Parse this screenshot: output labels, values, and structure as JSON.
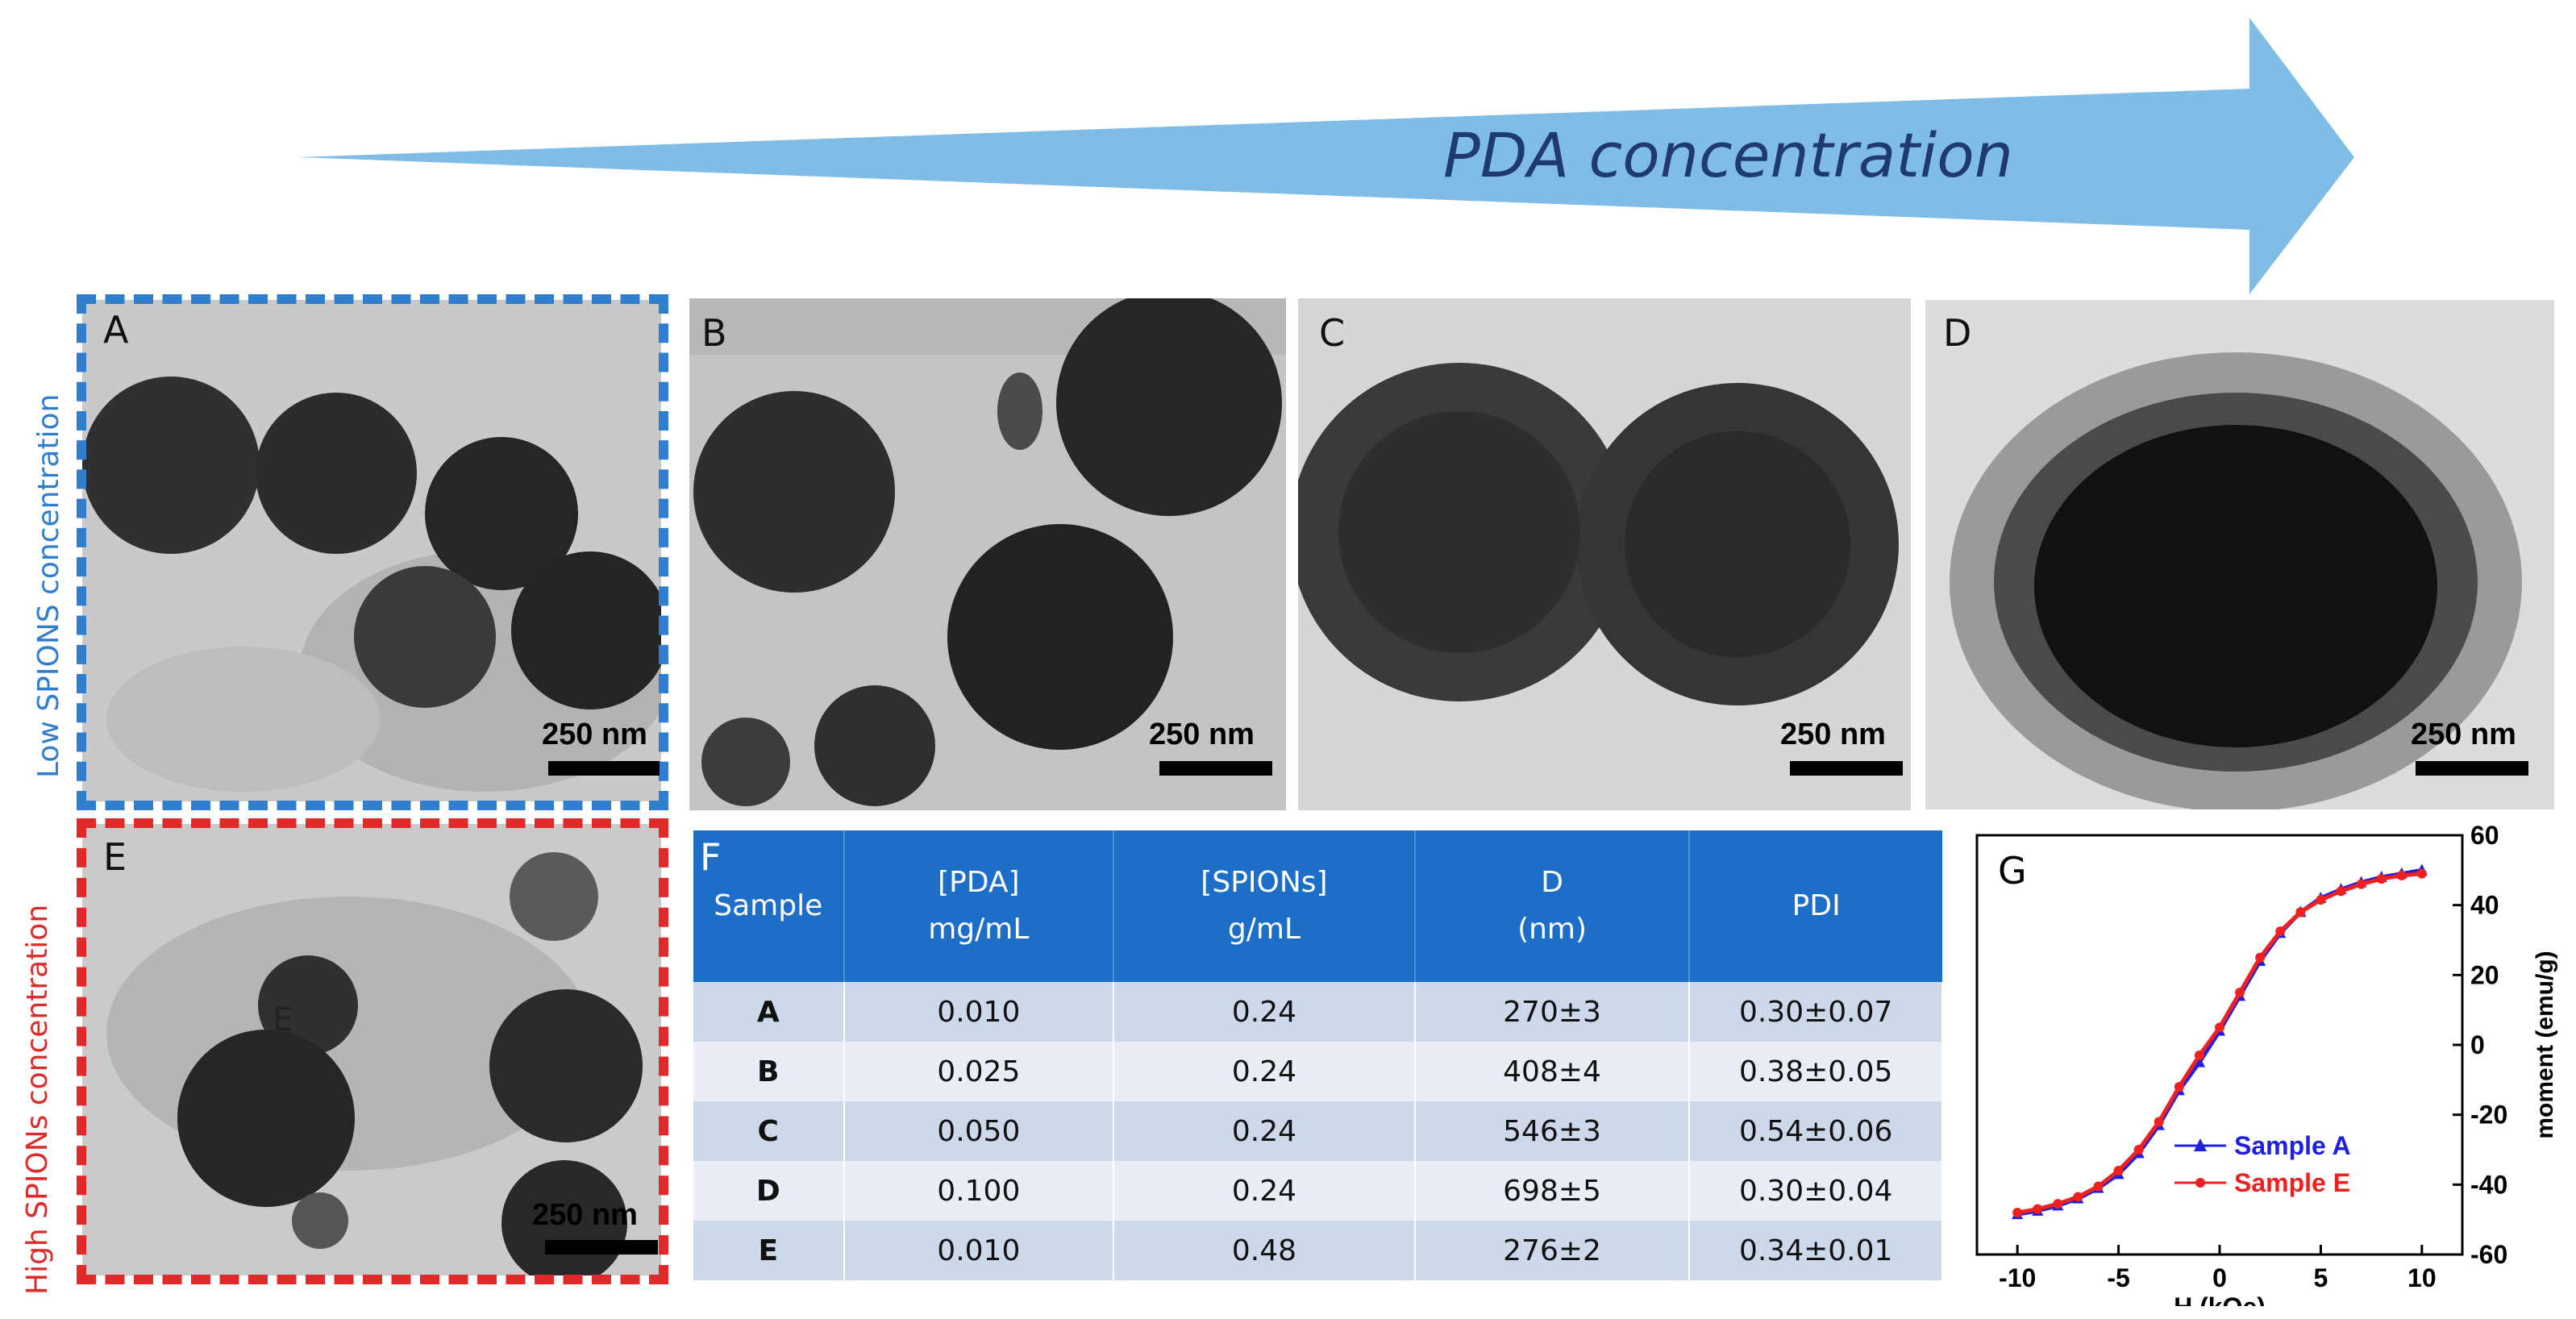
{
  "arrow": {
    "label": "PDA concentration",
    "color": "#7fbde6"
  },
  "row_labels": {
    "low": {
      "text": "Low SPIONS concentration",
      "color": "#2f7fce"
    },
    "high": {
      "text": "High SPIONs concentration",
      "color": "#e02a2a"
    }
  },
  "panels": [
    {
      "letter": "A",
      "scale": "250 nm"
    },
    {
      "letter": "B",
      "scale": "250 nm"
    },
    {
      "letter": "C",
      "scale": "250 nm"
    },
    {
      "letter": "D",
      "scale": "250 nm"
    },
    {
      "letter": "E",
      "scale": "250 nm",
      "inner_label": "E"
    }
  ],
  "table": {
    "panel_letter": "F",
    "headers": [
      {
        "line1": "Sample",
        "line2": ""
      },
      {
        "line1": "[PDA]",
        "line2": "mg/mL"
      },
      {
        "line1": "[SPIONs]",
        "line2": "g/mL"
      },
      {
        "line1": "D",
        "line2": "(nm)"
      },
      {
        "line1": "PDI",
        "line2": ""
      }
    ],
    "rows": [
      [
        "A",
        "0.010",
        "0.24",
        "270±3",
        "0.30±0.07"
      ],
      [
        "B",
        "0.025",
        "0.24",
        "408±4",
        "0.38±0.05"
      ],
      [
        "C",
        "0.050",
        "0.24",
        "546±3",
        "0.54±0.06"
      ],
      [
        "D",
        "0.100",
        "0.24",
        "698±5",
        "0.30±0.04"
      ],
      [
        "E",
        "0.010",
        "0.48",
        "276±2",
        "0.34±0.01"
      ]
    ],
    "header_color": "#1c6ec7"
  },
  "chart_data": {
    "panel_letter": "G",
    "type": "line",
    "xlabel": "H (kOe)",
    "ylabel": "moment (emu/g)",
    "xlim": [
      -12,
      12
    ],
    "ylim": [
      -60,
      60
    ],
    "xticks": [
      -10,
      -5,
      0,
      5,
      10
    ],
    "yticks": [
      -60,
      -40,
      -20,
      0,
      20,
      40,
      60
    ],
    "series": [
      {
        "name": "Sample A",
        "color": "#1f1fe0",
        "marker": "triangle",
        "x": [
          -10,
          -9,
          -8,
          -7,
          -6,
          -5,
          -4,
          -3,
          -2,
          -1,
          0,
          1,
          2,
          3,
          4,
          5,
          6,
          7,
          8,
          9,
          10
        ],
        "y": [
          -48.5,
          -47.5,
          -46,
          -44,
          -41,
          -37,
          -31,
          -23,
          -13,
          -5,
          4,
          14,
          24,
          32,
          38,
          42,
          44.5,
          46.5,
          48,
          49,
          50
        ]
      },
      {
        "name": "Sample E",
        "color": "#ef2020",
        "marker": "dot",
        "x": [
          -10,
          -9,
          -8,
          -7,
          -6,
          -5,
          -4,
          -3,
          -2,
          -1,
          0,
          1,
          2,
          3,
          4,
          5,
          6,
          7,
          8,
          9,
          10
        ],
        "y": [
          -48,
          -47,
          -45.5,
          -43.5,
          -40.5,
          -36,
          -30,
          -22,
          -12,
          -3,
          5,
          15,
          25,
          32.5,
          38,
          41.5,
          44,
          46,
          47.5,
          48.5,
          49
        ]
      }
    ],
    "legend": "bottom-right"
  }
}
